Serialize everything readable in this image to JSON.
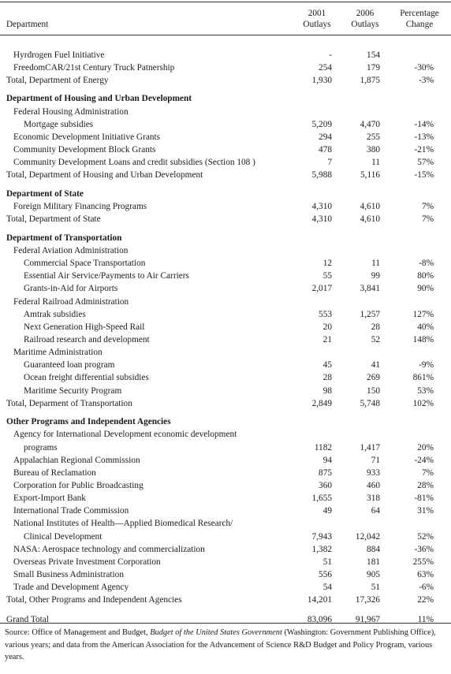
{
  "headers": {
    "department": "Department",
    "col1": [
      "2001",
      "Outlays"
    ],
    "col2": [
      "2006",
      "Outlays"
    ],
    "col3": [
      "Percentage",
      "Change"
    ]
  },
  "rows": [
    {
      "type": "gap"
    },
    {
      "label": "Hyrdrogen Fuel Initiative",
      "indent": 1,
      "v2001": "-",
      "v2006": "154",
      "change": ""
    },
    {
      "label": "FreedomCAR/21st Century Truck Patnership",
      "indent": 1,
      "v2001": "254",
      "v2006": "179",
      "change": "-30%"
    },
    {
      "label": "Total, Department of Energy",
      "indent": 0,
      "v2001": "1,930",
      "v2006": "1,875",
      "change": "-3%"
    },
    {
      "type": "gap"
    },
    {
      "label": "Department of Housing and Urban Development",
      "indent": 0,
      "bold": true
    },
    {
      "label": "Federal Housing Administration",
      "indent": 1
    },
    {
      "label": "Mortgage subsidies",
      "indent": 2,
      "v2001": "5,209",
      "v2006": "4,470",
      "change": "-14%"
    },
    {
      "label": "Economic Development Initiative Grants",
      "indent": 1,
      "v2001": "294",
      "v2006": "255",
      "change": "-13%"
    },
    {
      "label": "Community Development Block Grants",
      "indent": 1,
      "v2001": "478",
      "v2006": "380",
      "change": "-21%"
    },
    {
      "label": "Community Development Loans and credit subsidies (Section 108 )",
      "indent": 1,
      "v2001": "7",
      "v2006": "11",
      "change": "57%"
    },
    {
      "label": "Total, Department of Housing and Urban Development",
      "indent": 0,
      "v2001": "5,988",
      "v2006": "5,116",
      "change": "-15%"
    },
    {
      "type": "gap"
    },
    {
      "label": "Department of State",
      "indent": 0,
      "bold": true
    },
    {
      "label": "Foreign Military Financing Programs",
      "indent": 1,
      "v2001": "4,310",
      "v2006": "4,610",
      "change": "7%"
    },
    {
      "label": "Total, Department of State",
      "indent": 0,
      "v2001": "4,310",
      "v2006": "4,610",
      "change": "7%"
    },
    {
      "type": "gap"
    },
    {
      "label": "Department of Transportation",
      "indent": 0,
      "bold": true
    },
    {
      "label": "Federal Aviation Administration",
      "indent": 1
    },
    {
      "label": "Commercial Space Transportation",
      "indent": 2,
      "v2001": "12",
      "v2006": "11",
      "change": "-8%"
    },
    {
      "label": "Essential Air Service/Payments to Air Carriers",
      "indent": 2,
      "v2001": "55",
      "v2006": "99",
      "change": "80%"
    },
    {
      "label": "Grants-in-Aid for Airports",
      "indent": 2,
      "v2001": "2,017",
      "v2006": "3,841",
      "change": "90%"
    },
    {
      "label": "Federal Railroad Administration",
      "indent": 1
    },
    {
      "label": "Amtrak subsidies",
      "indent": 2,
      "v2001": "553",
      "v2006": "1,257",
      "change": "127%"
    },
    {
      "label": "Next Generation High-Speed Rail",
      "indent": 2,
      "v2001": "20",
      "v2006": "28",
      "change": "40%"
    },
    {
      "label": "Railroad research and development",
      "indent": 2,
      "v2001": "21",
      "v2006": "52",
      "change": "148%"
    },
    {
      "label": "Maritime Administration",
      "indent": 1
    },
    {
      "label": "Guaranteed loan program",
      "indent": 2,
      "v2001": "45",
      "v2006": "41",
      "change": "-9%"
    },
    {
      "label": "Ocean freight differential subsidies",
      "indent": 2,
      "v2001": "28",
      "v2006": "269",
      "change": "861%"
    },
    {
      "label": "Maritime Security Program",
      "indent": 2,
      "v2001": "98",
      "v2006": "150",
      "change": "53%"
    },
    {
      "label": "Total, Deparment of Transportation",
      "indent": 0,
      "v2001": "2,849",
      "v2006": "5,748",
      "change": "102%"
    },
    {
      "type": "gap"
    },
    {
      "label": "Other Programs and Independent Agencies",
      "indent": 0,
      "bold": true
    },
    {
      "label": "Agency for International Development economic development",
      "indent": 1
    },
    {
      "label": "programs",
      "indent": 2,
      "v2001": "1182",
      "v2006": "1,417",
      "change": "20%"
    },
    {
      "label": "Appalachian Regional Commission",
      "indent": 1,
      "v2001": "94",
      "v2006": "71",
      "change": "-24%"
    },
    {
      "label": "Bureau of Reclamation",
      "indent": 1,
      "v2001": "875",
      "v2006": "933",
      "change": "7%"
    },
    {
      "label": "Corporation for Public Broadcasting",
      "indent": 1,
      "v2001": "360",
      "v2006": "460",
      "change": "28%"
    },
    {
      "label": "Export-Import Bank",
      "indent": 1,
      "v2001": "1,655",
      "v2006": "318",
      "change": "-81%"
    },
    {
      "label": "International Trade Commission",
      "indent": 1,
      "v2001": "49",
      "v2006": "64",
      "change": "31%"
    },
    {
      "label": "National Institutes of Health—Applied Biomedical Research/",
      "indent": 1
    },
    {
      "label": "Clinical Development",
      "indent": 2,
      "v2001": "7,943",
      "v2006": "12,042",
      "change": "52%"
    },
    {
      "label": "NASA: Aerospace technology and commercialization",
      "indent": 1,
      "v2001": "1,382",
      "v2006": "884",
      "change": "-36%"
    },
    {
      "label": "Overseas Private Investment Corporation",
      "indent": 1,
      "v2001": "51",
      "v2006": "181",
      "change": "255%"
    },
    {
      "label": "Small Business Administration",
      "indent": 1,
      "v2001": "556",
      "v2006": "905",
      "change": "63%"
    },
    {
      "label": "Trade and Development Agency",
      "indent": 1,
      "v2001": "54",
      "v2006": "51",
      "change": "-6%"
    },
    {
      "label": "Total, Other Programs and Independent Agencies",
      "indent": 0,
      "v2001": "14,201",
      "v2006": "17,326",
      "change": "22%"
    },
    {
      "type": "gap-l"
    },
    {
      "label": "Grand Total",
      "indent": 0,
      "v2001": "83,096",
      "v2006": "91,967",
      "change": "11%"
    }
  ],
  "source": {
    "prefix": "Source: Office of Management and Budget, ",
    "title": "Budget of the United States Government",
    "suffix": " (Washington: Government Publishing Office), various years; and data from the American Association for the Advancement of Science R&D Budget and Policy Program, various years."
  }
}
